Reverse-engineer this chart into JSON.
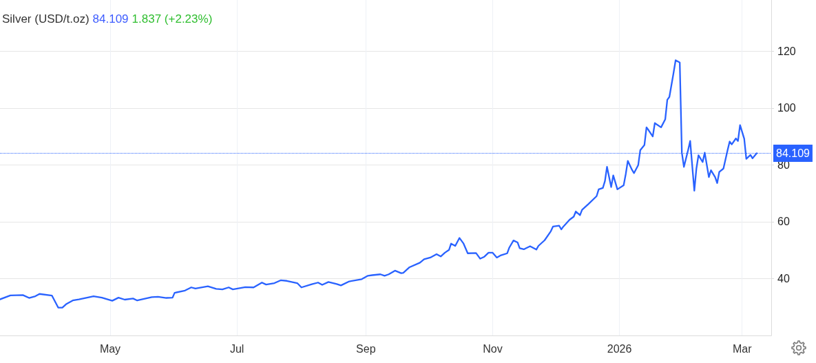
{
  "chart_data": {
    "type": "line",
    "title": "Silver (USD/t.oz)",
    "annotations": [
      "84.109",
      "1.837 (+2.23%)"
    ],
    "x": [
      "2025-03-09",
      "2025-03-14",
      "2025-03-20",
      "2025-03-23",
      "2025-03-26",
      "2025-03-28",
      "2025-04-03",
      "2025-04-06",
      "2025-04-08",
      "2025-04-10",
      "2025-04-13",
      "2025-04-16",
      "2025-04-23",
      "2025-04-27",
      "2025-05-02",
      "2025-05-05",
      "2025-05-08",
      "2025-05-12",
      "2025-05-14",
      "2025-05-21",
      "2025-05-24",
      "2025-05-28",
      "2025-05-31",
      "2025-06-01",
      "2025-06-06",
      "2025-06-09",
      "2025-06-11",
      "2025-06-17",
      "2025-06-21",
      "2025-06-24",
      "2025-06-27",
      "2025-06-29",
      "2025-07-05",
      "2025-07-09",
      "2025-07-13",
      "2025-07-15",
      "2025-07-19",
      "2025-07-22",
      "2025-07-25",
      "2025-07-30",
      "2025-08-01",
      "2025-08-06",
      "2025-08-09",
      "2025-08-11",
      "2025-08-14",
      "2025-08-18",
      "2025-08-20",
      "2025-08-24",
      "2025-08-30",
      "2025-09-02",
      "2025-09-04",
      "2025-09-08",
      "2025-09-10",
      "2025-09-12",
      "2025-09-15",
      "2025-09-18",
      "2025-09-19",
      "2025-09-22",
      "2025-09-27",
      "2025-09-29",
      "2025-10-02",
      "2025-10-05",
      "2025-10-07",
      "2025-10-09",
      "2025-10-11",
      "2025-10-12",
      "2025-10-14",
      "2025-10-16",
      "2025-10-18",
      "2025-10-20",
      "2025-10-24",
      "2025-10-26",
      "2025-10-28",
      "2025-10-30",
      "2025-11-01",
      "2025-11-03",
      "2025-11-05",
      "2025-11-08",
      "2025-11-09",
      "2025-11-11",
      "2025-11-13",
      "2025-11-14",
      "2025-11-16",
      "2025-11-19",
      "2025-11-22",
      "2025-11-23",
      "2025-11-26",
      "2025-11-29",
      "2025-11-30",
      "2025-12-03",
      "2025-12-04",
      "2025-12-05",
      "2025-12-08",
      "2025-12-10",
      "2025-12-11",
      "2025-12-13",
      "2025-12-14",
      "2025-12-17",
      "2025-12-21",
      "2025-12-22",
      "2025-12-24",
      "2025-12-25",
      "2025-12-26",
      "2025-12-28",
      "2025-12-29",
      "2025-12-31",
      "2026-01-03",
      "2026-01-04",
      "2026-01-05",
      "2026-01-07",
      "2026-01-08",
      "2026-01-10",
      "2026-01-11",
      "2026-01-13",
      "2026-01-14",
      "2026-01-15",
      "2026-01-17",
      "2026-01-18",
      "2026-01-21",
      "2026-01-23",
      "2026-01-24",
      "2026-01-25",
      "2026-01-27",
      "2026-01-28",
      "2026-01-30",
      "2026-01-31",
      "2026-02-01",
      "2026-02-03",
      "2026-02-04",
      "2026-02-06",
      "2026-02-07",
      "2026-02-08",
      "2026-02-10",
      "2026-02-11",
      "2026-02-13",
      "2026-02-14",
      "2026-02-16",
      "2026-02-17",
      "2026-02-18",
      "2026-02-20",
      "2026-02-22",
      "2026-02-23",
      "2026-02-24",
      "2026-02-26",
      "2026-02-27",
      "2026-02-28",
      "2026-03-02",
      "2026-03-03",
      "2026-03-05",
      "2026-03-06",
      "2026-03-08"
    ],
    "series": [
      {
        "color": "#2962ff",
        "values": [
          32.7,
          34.1,
          34.2,
          33.2,
          33.8,
          34.6,
          34.0,
          29.8,
          29.8,
          31.1,
          32.3,
          32.7,
          33.8,
          33.3,
          32.2,
          33.3,
          32.6,
          33.0,
          32.3,
          33.5,
          33.6,
          33.2,
          33.3,
          35.0,
          35.8,
          36.9,
          36.5,
          37.3,
          36.4,
          36.2,
          36.9,
          36.2,
          37.0,
          36.9,
          38.6,
          37.9,
          38.4,
          39.4,
          39.2,
          38.4,
          36.9,
          38.0,
          38.6,
          37.8,
          38.8,
          38.1,
          37.6,
          39.0,
          39.8,
          41.0,
          41.2,
          41.5,
          41.0,
          41.5,
          42.8,
          41.9,
          42.0,
          44.0,
          45.6,
          46.8,
          47.4,
          48.6,
          47.8,
          49.1,
          50.1,
          52.3,
          51.5,
          54.3,
          52.3,
          48.9,
          49.0,
          47.0,
          47.7,
          49.1,
          49.1,
          47.4,
          48.2,
          48.9,
          50.9,
          53.4,
          52.7,
          50.7,
          50.3,
          51.4,
          50.2,
          51.5,
          53.5,
          56.7,
          58.3,
          58.6,
          57.3,
          58.3,
          60.7,
          61.8,
          63.6,
          62.3,
          64.2,
          66.2,
          69.0,
          71.4,
          71.9,
          74.3,
          79.3,
          72.2,
          76.3,
          71.4,
          72.8,
          76.7,
          81.4,
          78.3,
          77.1,
          79.9,
          85.2,
          87.0,
          93.2,
          92.2,
          90.0,
          94.7,
          93.2,
          96.0,
          102.9,
          103.9,
          112.3,
          116.8,
          116.0,
          84.3,
          79.3,
          85.2,
          88.4,
          70.9,
          78.7,
          83.4,
          81.0,
          84.3,
          75.7,
          78.1,
          75.7,
          73.6,
          77.5,
          78.7,
          85.2,
          88.2,
          87.2,
          89.3,
          88.4,
          94.0,
          89.2,
          82.1,
          83.5,
          82.3,
          84.1
        ]
      }
    ],
    "xlim": [
      "2025-03-09",
      "2026-03-15"
    ],
    "xticks": [
      {
        "value": "2025-05-01",
        "label": "May"
      },
      {
        "value": "2025-07-01",
        "label": "Jul"
      },
      {
        "value": "2025-09-01",
        "label": "Sep"
      },
      {
        "value": "2025-11-01",
        "label": "Nov"
      },
      {
        "value": "2026-01-01",
        "label": "2026"
      },
      {
        "value": "2026-03-01",
        "label": "Mar"
      }
    ],
    "ylim": [
      20,
      138
    ],
    "yticks": [
      40,
      60,
      80,
      100,
      120
    ],
    "ref_lines": [
      {
        "axis": "y",
        "value": 84.109,
        "label": "84.109",
        "color": "#2962ff",
        "line_style": "dotted"
      }
    ],
    "grid": true,
    "marker": "none",
    "line_style": "solid"
  }
}
